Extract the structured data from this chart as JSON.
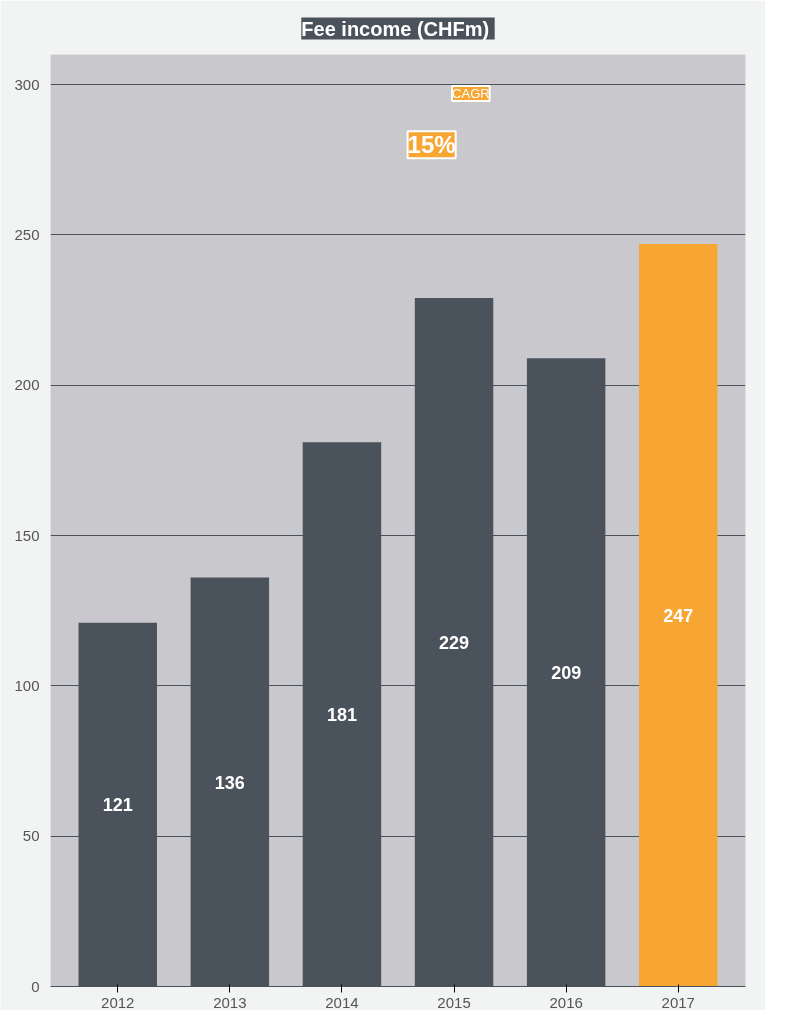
{
  "chart_data": {
    "type": "bar",
    "title": "Fee  income (CHFm)",
    "categories": [
      "2012",
      "2013",
      "2014",
      "2015",
      "2016",
      "2017"
    ],
    "values": [
      121,
      136,
      181,
      229,
      209,
      247
    ],
    "colors": [
      "#4a525b",
      "#4a525b",
      "#4a525b",
      "#4a525b",
      "#4a525b",
      "#f7a533"
    ],
    "ylim": [
      0,
      310
    ],
    "yticks": [
      0,
      50,
      100,
      150,
      200,
      250,
      300
    ],
    "grid": "y",
    "data_labels": true,
    "annotations": [
      "15%",
      "CAGR"
    ]
  }
}
